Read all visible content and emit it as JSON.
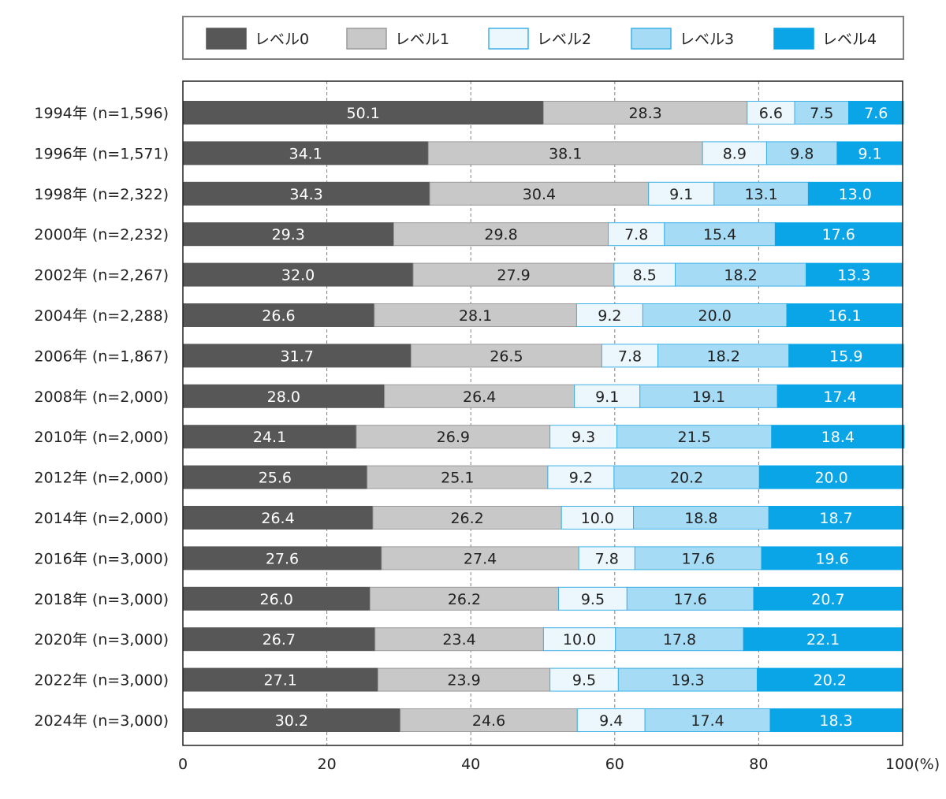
{
  "chart_data": {
    "type": "bar",
    "orientation": "horizontal",
    "stacked": true,
    "normalized": true,
    "categories": [
      "1994年 (n=1,596)",
      "1996年 (n=1,571)",
      "1998年 (n=2,322)",
      "2000年 (n=2,232)",
      "2002年 (n=2,267)",
      "2004年 (n=2,288)",
      "2006年 (n=1,867)",
      "2008年 (n=2,000)",
      "2010年 (n=2,000)",
      "2012年 (n=2,000)",
      "2014年 (n=2,000)",
      "2016年 (n=3,000)",
      "2018年 (n=3,000)",
      "2020年 (n=3,000)",
      "2022年 (n=3,000)",
      "2024年 (n=3,000)"
    ],
    "series": [
      {
        "name": "レベル0",
        "color": "#575757",
        "stroke": "#575757",
        "label_color": "#ffffff",
        "values": [
          50.1,
          34.1,
          34.3,
          29.3,
          32.0,
          26.6,
          31.7,
          28.0,
          24.1,
          25.6,
          26.4,
          27.6,
          26.0,
          26.7,
          27.1,
          30.2
        ]
      },
      {
        "name": "レベル1",
        "color": "#c8c8c8",
        "stroke": "#9a9a9a",
        "label_color": "#222222",
        "values": [
          28.3,
          38.1,
          30.4,
          29.8,
          27.9,
          28.1,
          26.5,
          26.4,
          26.9,
          25.1,
          26.2,
          27.4,
          26.2,
          23.4,
          23.9,
          24.6
        ]
      },
      {
        "name": "レベル2",
        "color": "#ebf7fd",
        "stroke": "#3db1e6",
        "label_color": "#222222",
        "values": [
          6.6,
          8.9,
          9.1,
          7.8,
          8.5,
          9.2,
          7.8,
          9.1,
          9.3,
          9.2,
          10.0,
          7.8,
          9.5,
          10.0,
          9.5,
          9.4
        ]
      },
      {
        "name": "レベル3",
        "color": "#a5dbf5",
        "stroke": "#3db1e6",
        "label_color": "#222222",
        "values": [
          7.5,
          9.8,
          13.1,
          15.4,
          18.2,
          20.0,
          18.2,
          19.1,
          21.5,
          20.2,
          18.8,
          17.6,
          17.6,
          17.8,
          19.3,
          17.4
        ]
      },
      {
        "name": "レベル4",
        "color": "#0aa5e6",
        "stroke": "#0aa5e6",
        "label_color": "#ffffff",
        "values": [
          7.6,
          9.1,
          13.0,
          17.6,
          13.3,
          16.1,
          15.9,
          17.4,
          18.4,
          20.0,
          18.7,
          19.6,
          20.7,
          22.1,
          20.2,
          18.3
        ]
      }
    ],
    "xlim": [
      0,
      100
    ],
    "xticks": [
      0,
      20,
      40,
      60,
      80,
      100
    ],
    "xtick_labels": [
      "0",
      "20",
      "40",
      "60",
      "80",
      "100(%)"
    ],
    "grid": true,
    "legend_position": "top"
  }
}
